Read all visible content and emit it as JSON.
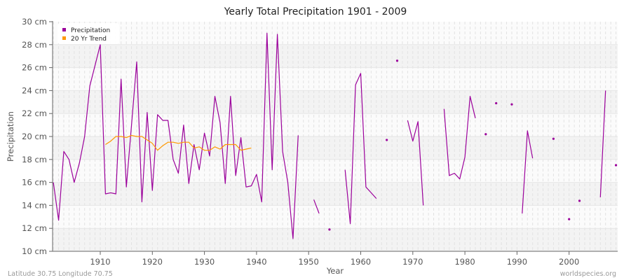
{
  "chart_data": {
    "type": "line",
    "title": "Yearly Total Precipitation 1901 - 2009",
    "xlabel": "Year",
    "ylabel": "Precipitation",
    "ylim": [
      10,
      30
    ],
    "xlim": [
      1901,
      2009
    ],
    "y_ticks": [
      {
        "value": 10,
        "label": "10 cm"
      },
      {
        "value": 12,
        "label": "12 cm"
      },
      {
        "value": 14,
        "label": "14 cm"
      },
      {
        "value": 16,
        "label": "16 cm"
      },
      {
        "value": 18,
        "label": "18 cm"
      },
      {
        "value": 20,
        "label": "20 cm"
      },
      {
        "value": 22,
        "label": "22 cm"
      },
      {
        "value": 24,
        "label": "24 cm"
      },
      {
        "value": 26,
        "label": "26 cm"
      },
      {
        "value": 28,
        "label": "28 cm"
      },
      {
        "value": 30,
        "label": "30 cm"
      }
    ],
    "x_ticks": [
      {
        "value": 1910,
        "label": "1910"
      },
      {
        "value": 1920,
        "label": "1920"
      },
      {
        "value": 1930,
        "label": "1930"
      },
      {
        "value": 1940,
        "label": "1940"
      },
      {
        "value": 1950,
        "label": "1950"
      },
      {
        "value": 1960,
        "label": "1960"
      },
      {
        "value": 1970,
        "label": "1970"
      },
      {
        "value": 1980,
        "label": "1980"
      },
      {
        "value": 1990,
        "label": "1990"
      },
      {
        "value": 2000,
        "label": "2000"
      }
    ],
    "grid": true,
    "legend_position": "top-left",
    "legend": [
      {
        "label": "Precipitation",
        "color": "#9b009b"
      },
      {
        "label": "20 Yr Trend",
        "color": "#ff9900"
      }
    ],
    "series": [
      {
        "name": "Precipitation",
        "color": "#9b009b",
        "unit": "cm",
        "points": [
          [
            1901,
            16.0
          ],
          [
            1902,
            12.7
          ],
          [
            1903,
            18.7
          ],
          [
            1904,
            18.0
          ],
          [
            1905,
            16.0
          ],
          [
            1906,
            17.7
          ],
          [
            1907,
            20.0
          ],
          [
            1908,
            24.4
          ],
          [
            1909,
            26.2
          ],
          [
            1910,
            28.0
          ],
          [
            1911,
            15.0
          ],
          [
            1912,
            15.1
          ],
          [
            1913,
            15.0
          ],
          [
            1914,
            25.0
          ],
          [
            1915,
            15.6
          ],
          [
            1916,
            21.0
          ],
          [
            1917,
            26.5
          ],
          [
            1918,
            14.3
          ],
          [
            1919,
            22.1
          ],
          [
            1920,
            15.3
          ],
          [
            1921,
            21.9
          ],
          [
            1922,
            21.4
          ],
          [
            1923,
            21.4
          ],
          [
            1924,
            18.0
          ],
          [
            1925,
            16.8
          ],
          [
            1926,
            21.0
          ],
          [
            1927,
            15.9
          ],
          [
            1928,
            19.3
          ],
          [
            1929,
            17.1
          ],
          [
            1930,
            20.3
          ],
          [
            1931,
            18.3
          ],
          [
            1932,
            23.5
          ],
          [
            1933,
            21.2
          ],
          [
            1934,
            15.9
          ],
          [
            1935,
            23.5
          ],
          [
            1936,
            16.6
          ],
          [
            1937,
            19.9
          ],
          [
            1938,
            15.6
          ],
          [
            1939,
            15.7
          ],
          [
            1940,
            16.7
          ],
          [
            1941,
            14.3
          ],
          [
            1942,
            29.0
          ],
          [
            1943,
            17.1
          ],
          [
            1944,
            28.9
          ],
          [
            1945,
            18.7
          ],
          [
            1946,
            16.0
          ],
          [
            1947,
            11.1
          ],
          [
            1948,
            20.1
          ],
          [
            1949,
            null
          ],
          [
            1950,
            null
          ],
          [
            1951,
            14.5
          ],
          [
            1952,
            13.3
          ],
          [
            1953,
            null
          ],
          [
            1954,
            11.9
          ],
          [
            1955,
            null
          ],
          [
            1956,
            null
          ],
          [
            1957,
            17.1
          ],
          [
            1958,
            12.4
          ],
          [
            1959,
            24.5
          ],
          [
            1960,
            25.5
          ],
          [
            1961,
            15.6
          ],
          [
            1962,
            15.1
          ],
          [
            1963,
            14.6
          ],
          [
            1964,
            null
          ],
          [
            1965,
            19.7
          ],
          [
            1966,
            null
          ],
          [
            1967,
            26.6
          ],
          [
            1968,
            null
          ],
          [
            1969,
            21.4
          ],
          [
            1970,
            19.6
          ],
          [
            1971,
            21.3
          ],
          [
            1972,
            14.0
          ],
          [
            1973,
            null
          ],
          [
            1974,
            null
          ],
          [
            1975,
            null
          ],
          [
            1976,
            22.4
          ],
          [
            1977,
            16.6
          ],
          [
            1978,
            16.8
          ],
          [
            1979,
            16.3
          ],
          [
            1980,
            18.2
          ],
          [
            1981,
            23.5
          ],
          [
            1982,
            21.6
          ],
          [
            1983,
            null
          ],
          [
            1984,
            20.2
          ],
          [
            1985,
            null
          ],
          [
            1986,
            22.9
          ],
          [
            1987,
            null
          ],
          [
            1988,
            null
          ],
          [
            1989,
            22.8
          ],
          [
            1990,
            null
          ],
          [
            1991,
            13.3
          ],
          [
            1992,
            20.5
          ],
          [
            1993,
            18.1
          ],
          [
            1994,
            null
          ],
          [
            1995,
            null
          ],
          [
            1996,
            null
          ],
          [
            1997,
            19.8
          ],
          [
            1998,
            null
          ],
          [
            1999,
            null
          ],
          [
            2000,
            12.8
          ],
          [
            2001,
            null
          ],
          [
            2002,
            14.4
          ],
          [
            2003,
            null
          ],
          [
            2004,
            null
          ],
          [
            2005,
            null
          ],
          [
            2006,
            14.7
          ],
          [
            2007,
            24.0
          ],
          [
            2008,
            null
          ],
          [
            2009,
            17.5
          ]
        ]
      },
      {
        "name": "20 Yr Trend",
        "color": "#ff9900",
        "unit": "cm",
        "points": [
          [
            1911,
            19.3
          ],
          [
            1912,
            19.6
          ],
          [
            1913,
            20.0
          ],
          [
            1914,
            20.0
          ],
          [
            1915,
            19.9
          ],
          [
            1916,
            20.1
          ],
          [
            1917,
            20.0
          ],
          [
            1918,
            20.0
          ],
          [
            1919,
            19.7
          ],
          [
            1920,
            19.4
          ],
          [
            1921,
            18.8
          ],
          [
            1922,
            19.2
          ],
          [
            1923,
            19.5
          ],
          [
            1924,
            19.5
          ],
          [
            1925,
            19.4
          ],
          [
            1926,
            19.5
          ],
          [
            1927,
            19.5
          ],
          [
            1928,
            19.0
          ],
          [
            1929,
            19.1
          ],
          [
            1930,
            18.8
          ],
          [
            1931,
            18.8
          ],
          [
            1932,
            19.1
          ],
          [
            1933,
            18.9
          ],
          [
            1934,
            19.3
          ],
          [
            1935,
            19.3
          ],
          [
            1936,
            19.3
          ],
          [
            1937,
            18.8
          ],
          [
            1938,
            18.9
          ],
          [
            1939,
            19.0
          ]
        ]
      }
    ]
  },
  "footer": {
    "left": "Latitude 30.75 Longitude 70.75",
    "right": "worldspecies.org"
  }
}
